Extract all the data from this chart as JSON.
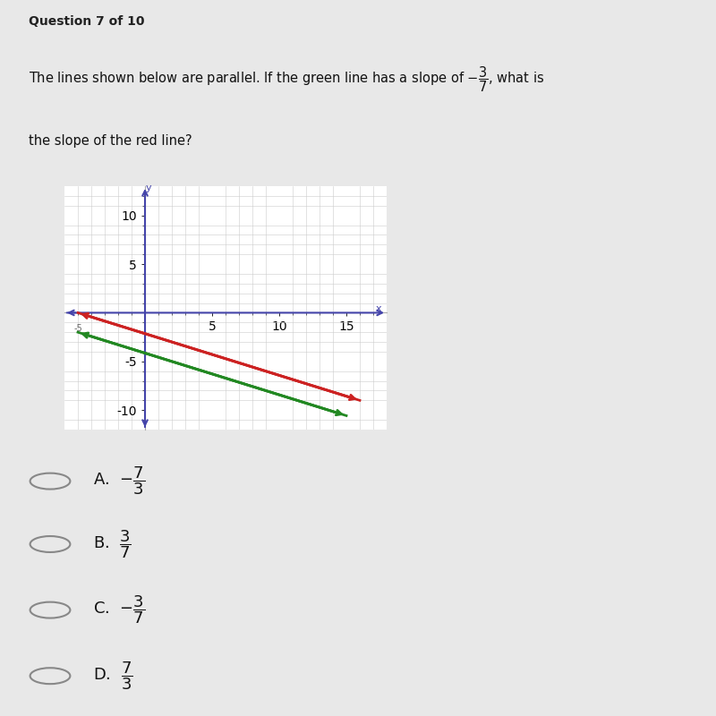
{
  "background_color": "#e8e8e8",
  "plot_bg": "#ffffff",
  "red_color": "#cc2222",
  "green_color": "#228822",
  "axis_color": "#4444aa",
  "grid_color": "#cccccc",
  "tick_color": "#666666",
  "xlim": [
    -6,
    18
  ],
  "ylim": [
    -12,
    13
  ],
  "red_x1": -5,
  "red_y1": 0,
  "red_x2": 16,
  "red_y2": -9,
  "green_x1": -5,
  "green_y1": -2,
  "green_x2": 15,
  "green_y2": -10.57,
  "xlabel_ticks": [
    5,
    10,
    15
  ],
  "ylabel_ticks": [
    -10,
    -5,
    5,
    10
  ],
  "choice_A": "-\\dfrac{7}{3}",
  "choice_B": "\\dfrac{3}{7}",
  "choice_C": "-\\dfrac{3}{7}",
  "choice_D": "\\dfrac{7}{3}",
  "header": "Question 7 of 10"
}
